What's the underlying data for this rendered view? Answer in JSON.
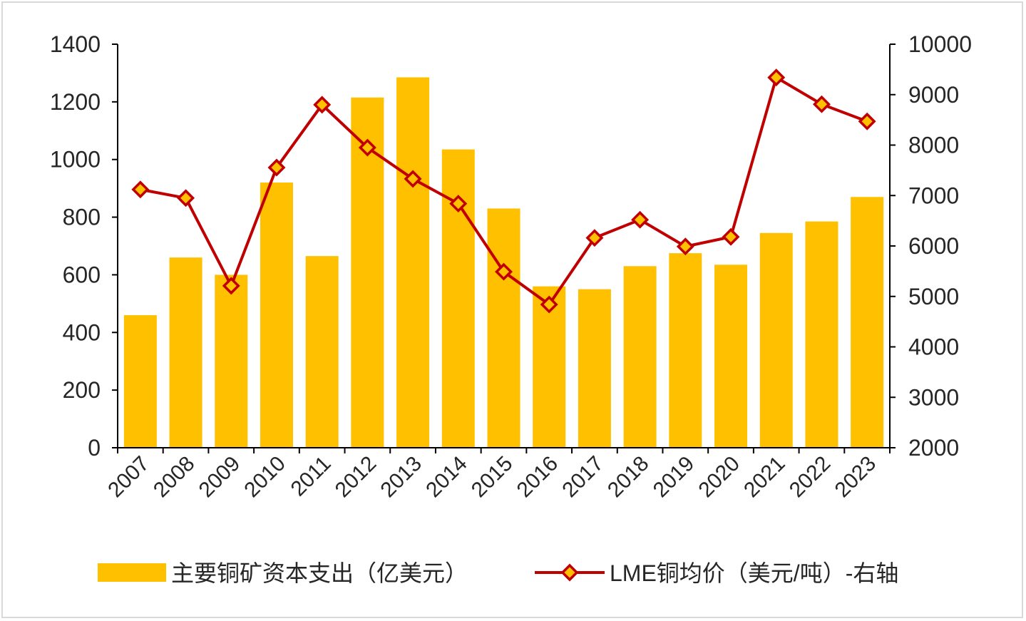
{
  "chart_data": {
    "type": "bar+line",
    "categories": [
      "2007",
      "2008",
      "2009",
      "2010",
      "2011",
      "2012",
      "2013",
      "2014",
      "2015",
      "2016",
      "2017",
      "2018",
      "2019",
      "2020",
      "2021",
      "2022",
      "2023"
    ],
    "series": [
      {
        "name": "主要铜矿资本支出（亿美元）",
        "type": "bar",
        "axis": "left",
        "values": [
          460,
          660,
          600,
          920,
          665,
          1215,
          1285,
          1035,
          830,
          560,
          550,
          630,
          675,
          635,
          745,
          785,
          870
        ]
      },
      {
        "name": "LME铜均价（美元/吨）-右轴",
        "type": "line",
        "axis": "right",
        "values": [
          7120,
          6950,
          5210,
          7555,
          8800,
          7950,
          7330,
          6840,
          5490,
          4840,
          6160,
          6520,
          5990,
          6180,
          9340,
          8810,
          8470
        ]
      }
    ],
    "y_left": {
      "lim": [
        0,
        1400
      ],
      "ticks": [
        "0",
        "200",
        "400",
        "600",
        "800",
        "1000",
        "1200",
        "1400"
      ]
    },
    "y_right": {
      "lim": [
        2000,
        10000
      ],
      "ticks": [
        "2000",
        "3000",
        "4000",
        "5000",
        "6000",
        "7000",
        "8000",
        "9000",
        "10000"
      ]
    },
    "grid": false,
    "legend_position": "bottom",
    "colors": {
      "bar": "#FFC000",
      "line": "#C00000",
      "marker_fill": "#FFC000"
    }
  }
}
